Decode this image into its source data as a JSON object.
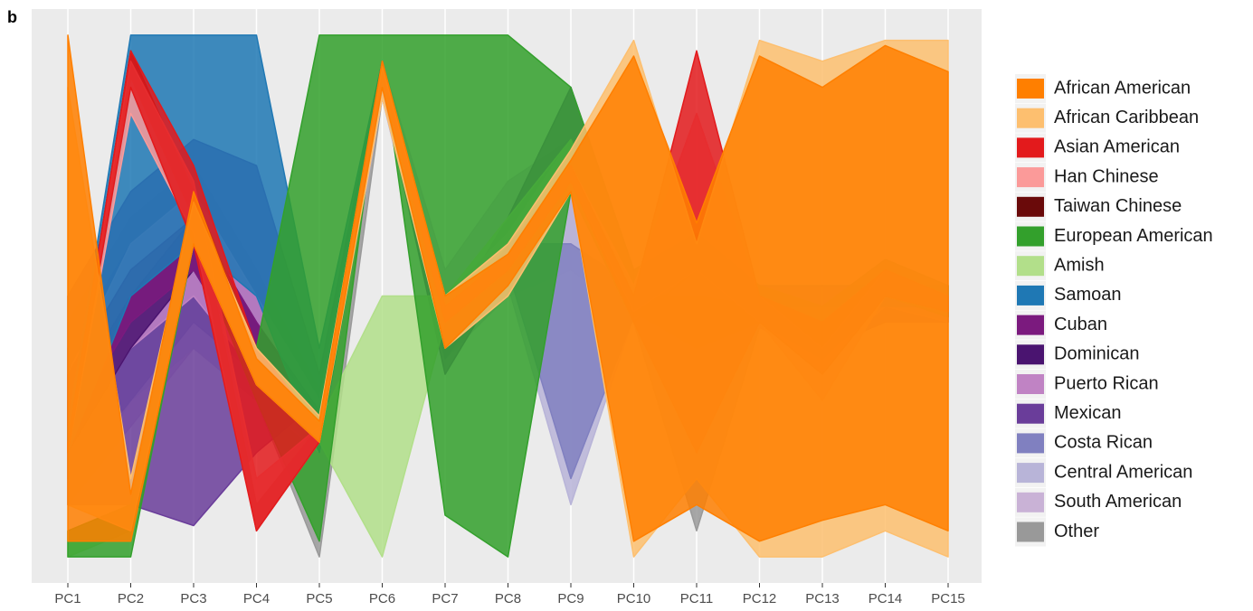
{
  "chart_data": {
    "type": "parallel",
    "panel_label": "b",
    "categories": [
      "PC1",
      "PC2",
      "PC3",
      "PC4",
      "PC5",
      "PC6",
      "PC7",
      "PC8",
      "PC9",
      "PC10",
      "PC11",
      "PC12",
      "PC13",
      "PC14",
      "PC15"
    ],
    "ylim": [
      -0.05,
      1.05
    ],
    "grid": true,
    "legend": "right",
    "series": [
      {
        "name": "African American",
        "color": "#ff7f00",
        "upper": [
          1.0,
          0.12,
          0.7,
          0.38,
          0.26,
          0.95,
          0.5,
          0.58,
          0.76,
          0.96,
          0.64,
          0.96,
          0.9,
          0.98,
          0.93
        ],
        "lower": [
          0.03,
          0.03,
          0.6,
          0.33,
          0.22,
          0.9,
          0.4,
          0.52,
          0.7,
          0.03,
          0.1,
          0.03,
          0.07,
          0.1,
          0.05
        ]
      },
      {
        "name": "African Caribbean",
        "color": "#fdbf6f",
        "upper": [
          0.9,
          0.15,
          0.68,
          0.4,
          0.27,
          0.94,
          0.5,
          0.6,
          0.78,
          0.99,
          0.6,
          0.99,
          0.95,
          0.99,
          0.99
        ],
        "lower": [
          0.1,
          0.05,
          0.6,
          0.33,
          0.22,
          0.88,
          0.4,
          0.5,
          0.7,
          0.0,
          0.15,
          0.0,
          0.0,
          0.05,
          0.0
        ]
      },
      {
        "name": "Asian American",
        "color": "#e31a1c",
        "upper": [
          0.22,
          0.97,
          0.75,
          0.4,
          0.25,
          0.95,
          0.48,
          0.58,
          0.75,
          0.5,
          0.97,
          0.5,
          0.45,
          0.55,
          0.5
        ],
        "lower": [
          0.2,
          0.9,
          0.6,
          0.05,
          0.22,
          0.92,
          0.45,
          0.55,
          0.72,
          0.45,
          0.2,
          0.45,
          0.35,
          0.5,
          0.47
        ]
      },
      {
        "name": "Han Chinese",
        "color": "#fb9a99",
        "upper": [
          0.22,
          0.95,
          0.72,
          0.15,
          0.25,
          0.95,
          0.48,
          0.58,
          0.75,
          0.52,
          0.85,
          0.5,
          0.4,
          0.55,
          0.5
        ],
        "lower": [
          0.2,
          0.85,
          0.62,
          0.05,
          0.22,
          0.92,
          0.45,
          0.55,
          0.72,
          0.47,
          0.55,
          0.45,
          0.3,
          0.5,
          0.47
        ]
      },
      {
        "name": "Taiwan Chinese",
        "color": "#6a0a0a",
        "upper": [
          0.22,
          0.97,
          0.7,
          0.1,
          0.25,
          0.95,
          0.48,
          0.58,
          0.75,
          0.5,
          0.5,
          0.48,
          0.42,
          0.53,
          0.49
        ],
        "lower": [
          0.2,
          0.92,
          0.65,
          0.05,
          0.22,
          0.92,
          0.45,
          0.55,
          0.72,
          0.47,
          0.4,
          0.45,
          0.38,
          0.5,
          0.47
        ]
      },
      {
        "name": "European American",
        "color": "#33a02c",
        "upper": [
          0.05,
          0.1,
          0.7,
          0.4,
          1.0,
          1.0,
          1.0,
          1.0,
          0.9,
          0.55,
          0.62,
          0.52,
          0.48,
          0.57,
          0.52
        ],
        "lower": [
          0.0,
          0.0,
          0.6,
          0.3,
          0.03,
          0.95,
          0.08,
          0.0,
          0.7,
          0.45,
          0.55,
          0.45,
          0.4,
          0.5,
          0.46
        ]
      },
      {
        "name": "Amish",
        "color": "#b2df8a",
        "upper": [
          0.05,
          0.1,
          0.65,
          0.4,
          0.26,
          0.5,
          0.5,
          0.65,
          0.8,
          0.52,
          0.58,
          0.5,
          0.45,
          0.55,
          0.5
        ],
        "lower": [
          0.0,
          0.05,
          0.6,
          0.35,
          0.22,
          0.0,
          0.45,
          0.6,
          0.75,
          0.48,
          0.55,
          0.47,
          0.42,
          0.52,
          0.48
        ]
      },
      {
        "name": "Samoan",
        "color": "#1f78b4",
        "upper": [
          0.25,
          1.0,
          1.0,
          1.0,
          0.4,
          0.95,
          0.45,
          0.55,
          0.76,
          0.52,
          0.52,
          0.52,
          0.52,
          0.52,
          0.52
        ],
        "lower": [
          0.2,
          0.5,
          0.6,
          0.5,
          0.2,
          0.9,
          0.4,
          0.5,
          0.72,
          0.48,
          0.48,
          0.48,
          0.48,
          0.48,
          0.48
        ]
      },
      {
        "name": "Cuban",
        "color": "#7b1a7e",
        "upper": [
          0.35,
          0.55,
          0.65,
          0.45,
          0.28,
          0.94,
          0.48,
          0.6,
          0.78,
          0.52,
          0.58,
          0.5,
          0.45,
          0.54,
          0.5
        ],
        "lower": [
          0.25,
          0.45,
          0.55,
          0.35,
          0.22,
          0.9,
          0.42,
          0.55,
          0.72,
          0.48,
          0.52,
          0.46,
          0.4,
          0.5,
          0.46
        ]
      },
      {
        "name": "Dominican",
        "color": "#4a1470",
        "upper": [
          0.3,
          0.5,
          0.65,
          0.45,
          0.27,
          0.94,
          0.48,
          0.6,
          0.78,
          0.5,
          0.55,
          0.5,
          0.44,
          0.53,
          0.5
        ],
        "lower": [
          0.2,
          0.4,
          0.55,
          0.35,
          0.22,
          0.9,
          0.42,
          0.55,
          0.72,
          0.46,
          0.5,
          0.45,
          0.4,
          0.5,
          0.46
        ]
      },
      {
        "name": "Puerto Rican",
        "color": "#c083c4",
        "upper": [
          0.35,
          0.6,
          0.7,
          0.5,
          0.3,
          0.94,
          0.5,
          0.62,
          0.8,
          0.54,
          0.6,
          0.52,
          0.46,
          0.55,
          0.52
        ],
        "lower": [
          0.2,
          0.4,
          0.5,
          0.35,
          0.22,
          0.9,
          0.4,
          0.52,
          0.7,
          0.46,
          0.5,
          0.44,
          0.38,
          0.48,
          0.45
        ]
      },
      {
        "name": "Mexican",
        "color": "#6a3d9a",
        "upper": [
          0.5,
          0.7,
          0.8,
          0.75,
          0.35,
          0.95,
          0.45,
          0.65,
          0.9,
          0.55,
          0.6,
          0.5,
          0.45,
          0.55,
          0.5
        ],
        "lower": [
          0.1,
          0.1,
          0.06,
          0.2,
          0.3,
          0.9,
          0.35,
          0.55,
          0.75,
          0.45,
          0.5,
          0.45,
          0.4,
          0.45,
          0.45
        ]
      },
      {
        "name": "Costa Rican",
        "color": "#8080c0",
        "upper": [
          0.4,
          0.6,
          0.65,
          0.5,
          0.3,
          0.94,
          0.45,
          0.6,
          0.6,
          0.52,
          0.56,
          0.5,
          0.44,
          0.54,
          0.5
        ],
        "lower": [
          0.15,
          0.3,
          0.45,
          0.35,
          0.25,
          0.9,
          0.38,
          0.55,
          0.15,
          0.46,
          0.5,
          0.45,
          0.4,
          0.48,
          0.46
        ]
      },
      {
        "name": "Central American",
        "color": "#b8b4d8",
        "upper": [
          0.4,
          0.6,
          0.7,
          0.5,
          0.3,
          0.94,
          0.5,
          0.62,
          0.7,
          0.52,
          0.56,
          0.5,
          0.44,
          0.54,
          0.5
        ],
        "lower": [
          0.1,
          0.3,
          0.4,
          0.3,
          0.22,
          0.88,
          0.38,
          0.52,
          0.1,
          0.46,
          0.5,
          0.45,
          0.4,
          0.48,
          0.46
        ]
      },
      {
        "name": "South American",
        "color": "#c9b2d6",
        "upper": [
          0.45,
          0.65,
          0.75,
          0.55,
          0.32,
          0.95,
          0.55,
          0.72,
          0.8,
          0.54,
          0.58,
          0.52,
          0.46,
          0.55,
          0.52
        ],
        "lower": [
          0.1,
          0.25,
          0.4,
          0.3,
          0.2,
          0.88,
          0.38,
          0.5,
          0.55,
          0.46,
          0.5,
          0.44,
          0.38,
          0.48,
          0.45
        ]
      },
      {
        "name": "Other",
        "color": "#999999",
        "upper": [
          0.3,
          0.55,
          0.65,
          0.45,
          0.28,
          0.94,
          0.48,
          0.6,
          0.78,
          0.52,
          0.56,
          0.5,
          0.44,
          0.54,
          0.5
        ],
        "lower": [
          0.15,
          0.35,
          0.5,
          0.3,
          0.0,
          0.88,
          0.4,
          0.5,
          0.6,
          0.45,
          0.05,
          0.44,
          0.38,
          0.48,
          0.45
        ]
      }
    ]
  }
}
